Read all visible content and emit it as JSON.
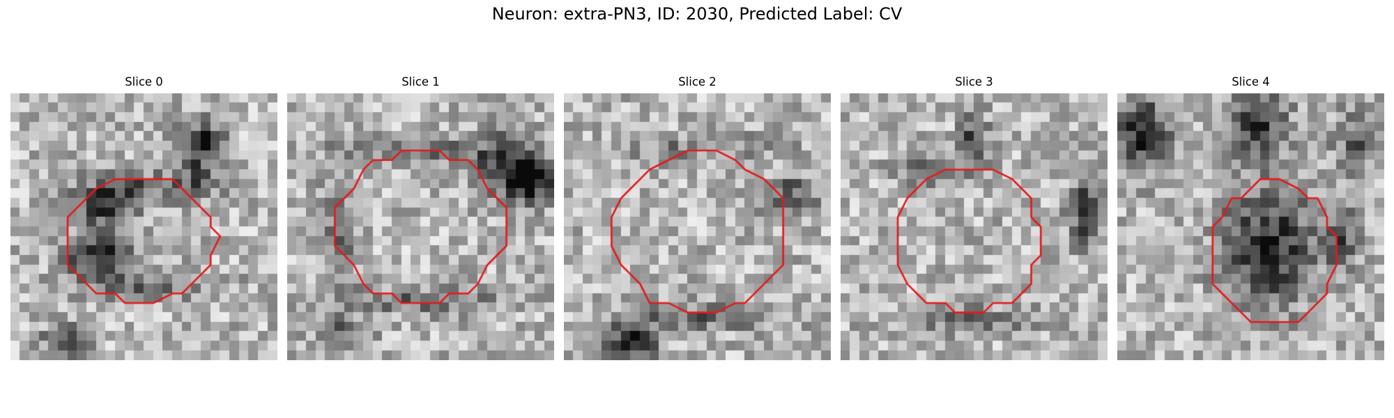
{
  "figure": {
    "title": "Neuron: extra-PN3, ID: 2030, Predicted Label: CV",
    "contour_color": "#e31a1c",
    "colormap": "gray"
  },
  "slices": [
    {
      "title": "Slice 0",
      "contour_center": [
        0.49,
        0.55
      ],
      "contour_radius": [
        0.28,
        0.23
      ],
      "darkness": [
        {
          "c": [
            0.36,
            0.43
          ],
          "r": [
            0.12,
            0.09
          ],
          "a": 0.45
        },
        {
          "c": [
            0.33,
            0.61
          ],
          "r": [
            0.13,
            0.07
          ],
          "a": 0.55
        },
        {
          "c": [
            0.7,
            0.22
          ],
          "r": [
            0.08,
            0.12
          ],
          "a": 0.45
        },
        {
          "c": [
            0.75,
            0.17
          ],
          "r": [
            0.04,
            0.04
          ],
          "a": 0.55
        },
        {
          "c": [
            0.2,
            0.93
          ],
          "r": [
            0.08,
            0.06
          ],
          "a": 0.4
        },
        {
          "c": [
            0.55,
            0.35
          ],
          "r": [
            0.25,
            0.05
          ],
          "a": 0.3
        },
        {
          "c": [
            0.5,
            0.72
          ],
          "r": [
            0.25,
            0.05
          ],
          "a": 0.3
        }
      ]
    },
    {
      "title": "Slice 1",
      "contour_center": [
        0.5,
        0.5
      ],
      "contour_radius": [
        0.31,
        0.28
      ],
      "darkness": [
        {
          "c": [
            0.82,
            0.28
          ],
          "r": [
            0.1,
            0.12
          ],
          "a": 0.55
        },
        {
          "c": [
            0.93,
            0.32
          ],
          "r": [
            0.07,
            0.09
          ],
          "a": 0.6
        },
        {
          "c": [
            0.5,
            0.22
          ],
          "r": [
            0.3,
            0.05
          ],
          "a": 0.3
        },
        {
          "c": [
            0.5,
            0.78
          ],
          "r": [
            0.3,
            0.05
          ],
          "a": 0.3
        },
        {
          "c": [
            0.2,
            0.5
          ],
          "r": [
            0.06,
            0.25
          ],
          "a": 0.25
        },
        {
          "c": [
            0.2,
            0.9
          ],
          "r": [
            0.1,
            0.07
          ],
          "a": 0.3
        }
      ]
    },
    {
      "title": "Slice 2",
      "contour_center": [
        0.51,
        0.52
      ],
      "contour_radius": [
        0.32,
        0.3
      ],
      "darkness": [
        {
          "c": [
            0.25,
            0.94
          ],
          "r": [
            0.09,
            0.06
          ],
          "a": 0.7
        },
        {
          "c": [
            0.5,
            0.84
          ],
          "r": [
            0.3,
            0.05
          ],
          "a": 0.3
        },
        {
          "c": [
            0.85,
            0.38
          ],
          "r": [
            0.1,
            0.08
          ],
          "a": 0.35
        },
        {
          "c": [
            0.5,
            0.2
          ],
          "r": [
            0.3,
            0.05
          ],
          "a": 0.2
        }
      ]
    },
    {
      "title": "Slice 3",
      "contour_center": [
        0.48,
        0.55
      ],
      "contour_radius": [
        0.27,
        0.27
      ],
      "darkness": [
        {
          "c": [
            0.5,
            0.18
          ],
          "r": [
            0.05,
            0.1
          ],
          "a": 0.5
        },
        {
          "c": [
            0.92,
            0.45
          ],
          "r": [
            0.06,
            0.12
          ],
          "a": 0.55
        },
        {
          "c": [
            0.5,
            0.85
          ],
          "r": [
            0.25,
            0.05
          ],
          "a": 0.25
        },
        {
          "c": [
            0.3,
            0.3
          ],
          "r": [
            0.1,
            0.06
          ],
          "a": 0.25
        }
      ]
    },
    {
      "title": "Slice 4",
      "contour_center": [
        0.58,
        0.6
      ],
      "contour_radius": [
        0.23,
        0.27
      ],
      "darkness": [
        {
          "c": [
            0.57,
            0.58
          ],
          "r": [
            0.17,
            0.22
          ],
          "a": 0.55
        },
        {
          "c": [
            0.1,
            0.15
          ],
          "r": [
            0.1,
            0.14
          ],
          "a": 0.55
        },
        {
          "c": [
            0.52,
            0.12
          ],
          "r": [
            0.12,
            0.12
          ],
          "a": 0.5
        },
        {
          "c": [
            0.85,
            0.55
          ],
          "r": [
            0.06,
            0.12
          ],
          "a": 0.35
        },
        {
          "c": [
            0.9,
            0.18
          ],
          "r": [
            0.08,
            0.12
          ],
          "a": 0.35
        }
      ]
    }
  ]
}
